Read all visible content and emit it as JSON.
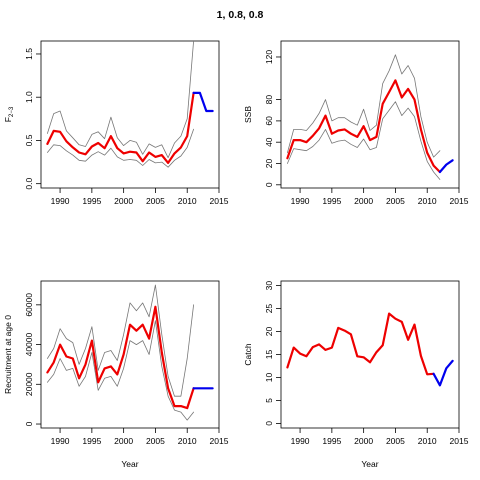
{
  "figure": {
    "title": "1, 0.8, 0.8"
  },
  "colors": {
    "estimate": "#ee0000",
    "projection": "#0000ee",
    "bounds": "#777777"
  },
  "chart_data": [
    {
      "type": "line",
      "ylabel": "F2-3",
      "ylabel_main": "F",
      "ylabel_sub": "2−3",
      "xlabel": "",
      "xlim": [
        1987,
        2015
      ],
      "ylim": [
        -0.05,
        1.65
      ],
      "xticks": [
        1990,
        1995,
        2000,
        2005,
        2010,
        2015
      ],
      "yticks": [
        0.0,
        0.5,
        1.0,
        1.5
      ],
      "ytick_labels": [
        "0.0",
        "0.5",
        "1.0",
        "1.5"
      ],
      "series": [
        {
          "role": "estimate",
          "x": [
            1988,
            1989,
            1990,
            1991,
            1992,
            1993,
            1994,
            1995,
            1996,
            1997,
            1998,
            1999,
            2000,
            2001,
            2002,
            2003,
            2004,
            2005,
            2006,
            2007,
            2008,
            2009,
            2010,
            2011
          ],
          "y": [
            0.46,
            0.61,
            0.6,
            0.49,
            0.42,
            0.36,
            0.34,
            0.43,
            0.47,
            0.41,
            0.55,
            0.41,
            0.35,
            0.37,
            0.36,
            0.26,
            0.36,
            0.31,
            0.33,
            0.24,
            0.35,
            0.42,
            0.55,
            1.05
          ]
        },
        {
          "role": "upper",
          "x": [
            1988,
            1989,
            1990,
            1991,
            1992,
            1993,
            1994,
            1995,
            1996,
            1997,
            1998,
            1999,
            2000,
            2001,
            2002,
            2003,
            2004,
            2005,
            2006,
            2007,
            2008,
            2009,
            2010,
            2011
          ],
          "y": [
            0.58,
            0.81,
            0.84,
            0.61,
            0.53,
            0.45,
            0.43,
            0.57,
            0.6,
            0.52,
            0.77,
            0.53,
            0.44,
            0.5,
            0.48,
            0.34,
            0.46,
            0.42,
            0.45,
            0.3,
            0.47,
            0.55,
            0.75,
            1.65
          ]
        },
        {
          "role": "lower",
          "x": [
            1988,
            1989,
            1990,
            1991,
            1992,
            1993,
            1994,
            1995,
            1996,
            1997,
            1998,
            1999,
            2000,
            2001,
            2002,
            2003,
            2004,
            2005,
            2006,
            2007,
            2008,
            2009,
            2010,
            2011
          ],
          "y": [
            0.36,
            0.45,
            0.44,
            0.38,
            0.33,
            0.27,
            0.26,
            0.33,
            0.37,
            0.33,
            0.41,
            0.31,
            0.27,
            0.28,
            0.27,
            0.21,
            0.28,
            0.24,
            0.25,
            0.19,
            0.27,
            0.32,
            0.42,
            0.63
          ]
        },
        {
          "role": "projection",
          "x": [
            2011,
            2012,
            2013,
            2014
          ],
          "y": [
            1.05,
            1.05,
            0.84,
            0.84
          ]
        }
      ]
    },
    {
      "type": "line",
      "ylabel": "SSB",
      "xlabel": "",
      "xlim": [
        1987,
        2015
      ],
      "ylim": [
        -3,
        135
      ],
      "xticks": [
        1990,
        1995,
        2000,
        2005,
        2010,
        2015
      ],
      "yticks": [
        0,
        20,
        40,
        60,
        80,
        120
      ],
      "ytick_labels": [
        "0",
        "20",
        "40",
        "60",
        "80",
        "120"
      ],
      "series": [
        {
          "role": "estimate",
          "x": [
            1988,
            1989,
            1990,
            1991,
            1992,
            1993,
            1994,
            1995,
            1996,
            1997,
            1998,
            1999,
            2000,
            2001,
            2002,
            2003,
            2004,
            2005,
            2006,
            2007,
            2008,
            2009,
            2010,
            2011,
            2012
          ],
          "y": [
            25,
            42,
            42,
            40,
            46,
            53,
            65,
            48,
            51,
            52,
            48,
            45,
            55,
            42,
            45,
            76,
            87,
            98,
            82,
            90,
            80,
            52,
            30,
            18,
            12
          ]
        },
        {
          "role": "upper",
          "x": [
            1988,
            1989,
            1990,
            1991,
            1992,
            1993,
            1994,
            1995,
            1996,
            1997,
            1998,
            1999,
            2000,
            2001,
            2002,
            2003,
            2004,
            2005,
            2006,
            2007,
            2008,
            2009,
            2010,
            2011,
            2012
          ],
          "y": [
            30,
            52,
            52,
            51,
            58,
            67,
            80,
            60,
            63,
            63,
            59,
            56,
            71,
            51,
            56,
            95,
            107,
            122,
            104,
            112,
            100,
            64,
            40,
            26,
            32
          ]
        },
        {
          "role": "lower",
          "x": [
            1988,
            1989,
            1990,
            1991,
            1992,
            1993,
            1994,
            1995,
            1996,
            1997,
            1998,
            1999,
            2000,
            2001,
            2002,
            2003,
            2004,
            2005,
            2006,
            2007,
            2008,
            2009,
            2010,
            2011,
            2012
          ],
          "y": [
            20,
            34,
            33,
            32,
            36,
            42,
            52,
            39,
            41,
            42,
            38,
            35,
            43,
            33,
            35,
            62,
            70,
            78,
            65,
            72,
            64,
            41,
            22,
            12,
            5
          ]
        },
        {
          "role": "projection",
          "x": [
            2012,
            2013,
            2014
          ],
          "y": [
            12,
            19,
            23
          ]
        }
      ]
    },
    {
      "type": "line",
      "ylabel": "Recruitment at age 0",
      "xlabel": "Year",
      "xlim": [
        1987,
        2015
      ],
      "ylim": [
        -2000,
        72000
      ],
      "xticks": [
        1990,
        1995,
        2000,
        2005,
        2010,
        2015
      ],
      "yticks": [
        0,
        20000,
        40000,
        60000
      ],
      "ytick_labels": [
        "0",
        "20000",
        "40000",
        "60000"
      ],
      "series": [
        {
          "role": "estimate",
          "x": [
            1988,
            1989,
            1990,
            1991,
            1992,
            1993,
            1994,
            1995,
            1996,
            1997,
            1998,
            1999,
            2000,
            2001,
            2002,
            2003,
            2004,
            2005,
            2006,
            2007,
            2008,
            2009,
            2010,
            2011
          ],
          "y": [
            26000,
            31000,
            40000,
            34000,
            33000,
            23000,
            30000,
            42000,
            21000,
            28000,
            29000,
            25000,
            35000,
            50000,
            47000,
            50000,
            43000,
            59000,
            36000,
            18000,
            9000,
            9000,
            8000,
            18000
          ]
        },
        {
          "role": "upper",
          "x": [
            1988,
            1989,
            1990,
            1991,
            1992,
            1993,
            1994,
            1995,
            1996,
            1997,
            1998,
            1999,
            2000,
            2001,
            2002,
            2003,
            2004,
            2005,
            2006,
            2007,
            2008,
            2009,
            2010,
            2011
          ],
          "y": [
            33000,
            38000,
            48000,
            43000,
            41000,
            30000,
            38000,
            49000,
            27000,
            36000,
            37000,
            32000,
            45000,
            61000,
            57000,
            61000,
            54000,
            70000,
            45000,
            24000,
            14000,
            14000,
            33000,
            60000
          ]
        },
        {
          "role": "lower",
          "x": [
            1988,
            1989,
            1990,
            1991,
            1992,
            1993,
            1994,
            1995,
            1996,
            1997,
            1998,
            1999,
            2000,
            2001,
            2002,
            2003,
            2004,
            2005,
            2006,
            2007,
            2008,
            2009,
            2010,
            2011
          ],
          "y": [
            21000,
            25000,
            33000,
            27000,
            28000,
            19000,
            24000,
            36000,
            17000,
            23000,
            24000,
            19000,
            28000,
            42000,
            40000,
            42000,
            35000,
            52000,
            29000,
            14000,
            7000,
            6000,
            2000,
            6000
          ]
        },
        {
          "role": "projection",
          "x": [
            2011,
            2012,
            2013,
            2014
          ],
          "y": [
            18000,
            18000,
            18000,
            18000
          ]
        }
      ]
    },
    {
      "type": "line",
      "ylabel": "Catch",
      "xlabel": "Year",
      "xlim": [
        1987,
        2015
      ],
      "ylim": [
        -1,
        31
      ],
      "xticks": [
        1990,
        1995,
        2000,
        2005,
        2010,
        2015
      ],
      "yticks": [
        0,
        5,
        10,
        15,
        20,
        25,
        30
      ],
      "ytick_labels": [
        "0",
        "5",
        "10",
        "15",
        "20",
        "25",
        "30"
      ],
      "series": [
        {
          "role": "estimate",
          "x": [
            1988,
            1989,
            1990,
            1991,
            1992,
            1993,
            1994,
            1995,
            1996,
            1997,
            1998,
            1999,
            2000,
            2001,
            2002,
            2003,
            2004,
            2005,
            2006,
            2007,
            2008,
            2009,
            2010,
            2011
          ],
          "y": [
            12.2,
            16.5,
            15.2,
            14.6,
            16.6,
            17.2,
            16.0,
            16.5,
            20.8,
            20.2,
            19.4,
            14.6,
            14.4,
            13.3,
            15.5,
            17.0,
            23.9,
            22.8,
            22.1,
            18.2,
            21.5,
            14.7,
            10.7,
            10.8
          ]
        },
        {
          "role": "projection",
          "x": [
            2011,
            2012,
            2013,
            2014
          ],
          "y": [
            10.8,
            8.3,
            12.0,
            13.6
          ]
        }
      ]
    }
  ]
}
